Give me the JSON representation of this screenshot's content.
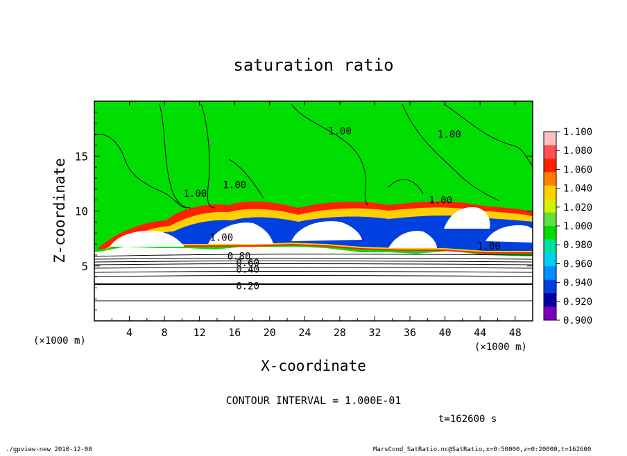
{
  "figure": {
    "title": "saturation ratio",
    "xlabel": "X-coordinate",
    "ylabel": "Z-coordinate",
    "x_unit": "(×1000 m)",
    "y_unit": "(×1000 m)",
    "contour_interval": "CONTOUR INTERVAL = 1.000E-01",
    "time": "t=162600 s",
    "footer_left": "./gpview-new   2010-12-08",
    "footer_right": "MarsCond_SatRatio.nc@SatRatio,x=0:50000,z=0:20000,t=162600"
  },
  "chart_data": {
    "type": "heatmap",
    "title": "saturation ratio",
    "xlabel": "X-coordinate",
    "ylabel": "Z-coordinate",
    "x_range": [
      0,
      50
    ],
    "y_range": [
      0,
      20
    ],
    "x_ticks": [
      4,
      8,
      12,
      16,
      20,
      24,
      28,
      32,
      36,
      40,
      44,
      48
    ],
    "y_ticks": [
      5,
      10,
      15
    ],
    "contour_interval": 0.1,
    "contour_labels": [
      {
        "text": "1.00",
        "x": 11.5,
        "z": 11.6
      },
      {
        "text": "1.00",
        "x": 16,
        "z": 12.4
      },
      {
        "text": "1.00",
        "x": 28,
        "z": 17.3
      },
      {
        "text": "1.00",
        "x": 40.5,
        "z": 17.0
      },
      {
        "text": "1.00",
        "x": 39.5,
        "z": 11.0
      },
      {
        "text": "1.00",
        "x": 14.5,
        "z": 7.6
      },
      {
        "text": "1.00",
        "x": 45,
        "z": 6.8
      },
      {
        "text": "0.80",
        "x": 16.5,
        "z": 5.9
      },
      {
        "text": "0.60",
        "x": 17.5,
        "z": 5.3
      },
      {
        "text": "0.40",
        "x": 17.5,
        "z": 4.7
      },
      {
        "text": "0.20",
        "x": 17.5,
        "z": 3.2
      }
    ],
    "colorbar": {
      "levels": [
        "1.100",
        "1.080",
        "1.060",
        "1.040",
        "1.020",
        "1.000",
        "0.980",
        "0.960",
        "0.940",
        "0.920",
        "0.900"
      ],
      "colors": [
        "#ffc0c0",
        "#ff5050",
        "#ff2000",
        "#ff8000",
        "#ffd000",
        "#d8f000",
        "#60e040",
        "#00dd00",
        "#00e0a0",
        "#00d0f0",
        "#0090ff",
        "#0040e0",
        "#0000a0",
        "#8000c0"
      ]
    },
    "field_colors": {
      "supersaturated_green": "#00dd00",
      "high_white": "#ffffff",
      "dry_white": "#ffffff"
    },
    "grid": false
  }
}
